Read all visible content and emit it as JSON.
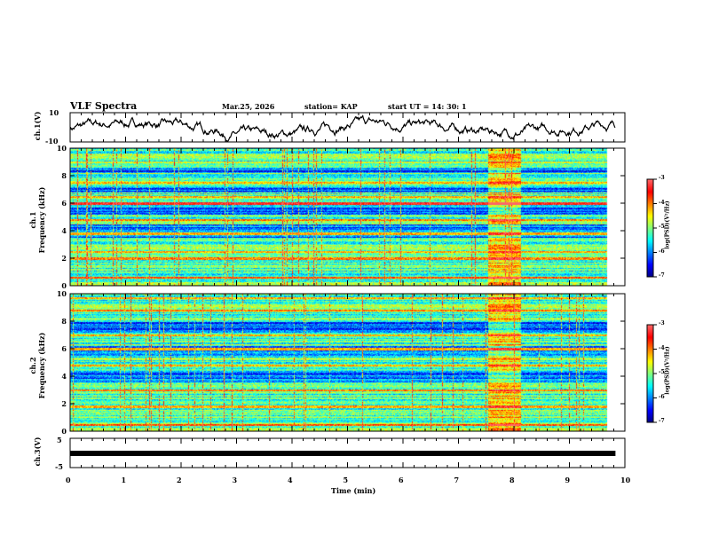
{
  "header": {
    "title": "VLF Spectra",
    "date": "Mar.25, 2026",
    "station": "station= KAP",
    "start": "start  UT =   14: 30: 1"
  },
  "chart_data": [
    {
      "type": "line",
      "name": "ch1 waveform",
      "ylabel": "ch.1(V)",
      "ylim": [
        -10,
        10
      ],
      "yticks": [
        "10",
        "-10"
      ],
      "xlim": [
        0,
        10
      ],
      "data_end": 9.83
    },
    {
      "type": "heatmap",
      "name": "ch1 spectrogram",
      "ylabel": "ch.1\nFrequency (kHz)",
      "ylabel_top": "ch.1",
      "ylabel_bottom": "Frequency (kHz)",
      "ylim": [
        0,
        10
      ],
      "yticks": [
        "0",
        "2",
        "4",
        "6",
        "8",
        "10"
      ],
      "xlim": [
        0,
        10
      ],
      "data_end": 9.83,
      "burst_interval_min": [
        7.65,
        8.25
      ],
      "colorbar": {
        "label": "log(PSD)(V²/Hz)",
        "range": [
          -7,
          -3
        ],
        "ticks": [
          "-3",
          "-4",
          "-5",
          "-6",
          "-7"
        ]
      }
    },
    {
      "type": "heatmap",
      "name": "ch2 spectrogram",
      "ylabel_top": "ch.2",
      "ylabel_bottom": "Frequency (kHz)",
      "ylim": [
        0,
        10
      ],
      "yticks": [
        "0",
        "2",
        "4",
        "6",
        "8",
        "10"
      ],
      "xlim": [
        0,
        10
      ],
      "data_end": 9.83,
      "burst_interval_min": [
        7.65,
        8.25
      ],
      "colorbar": {
        "label": "log(PSD)(V²/Hz)",
        "range": [
          -7,
          -3
        ],
        "ticks": [
          "-3",
          "-4",
          "-5",
          "-6",
          "-7"
        ]
      }
    },
    {
      "type": "line",
      "name": "ch3 waveform",
      "ylabel": "ch.3(V)",
      "ylim": [
        -5,
        5
      ],
      "yticks": [
        "5",
        "-5"
      ],
      "xlim": [
        0,
        10
      ],
      "data_end": 9.83,
      "level": 0,
      "xlabel": "Time  (min)",
      "xticks": [
        "0",
        "1",
        "2",
        "3",
        "4",
        "5",
        "6",
        "7",
        "8",
        "9",
        "10"
      ]
    }
  ]
}
